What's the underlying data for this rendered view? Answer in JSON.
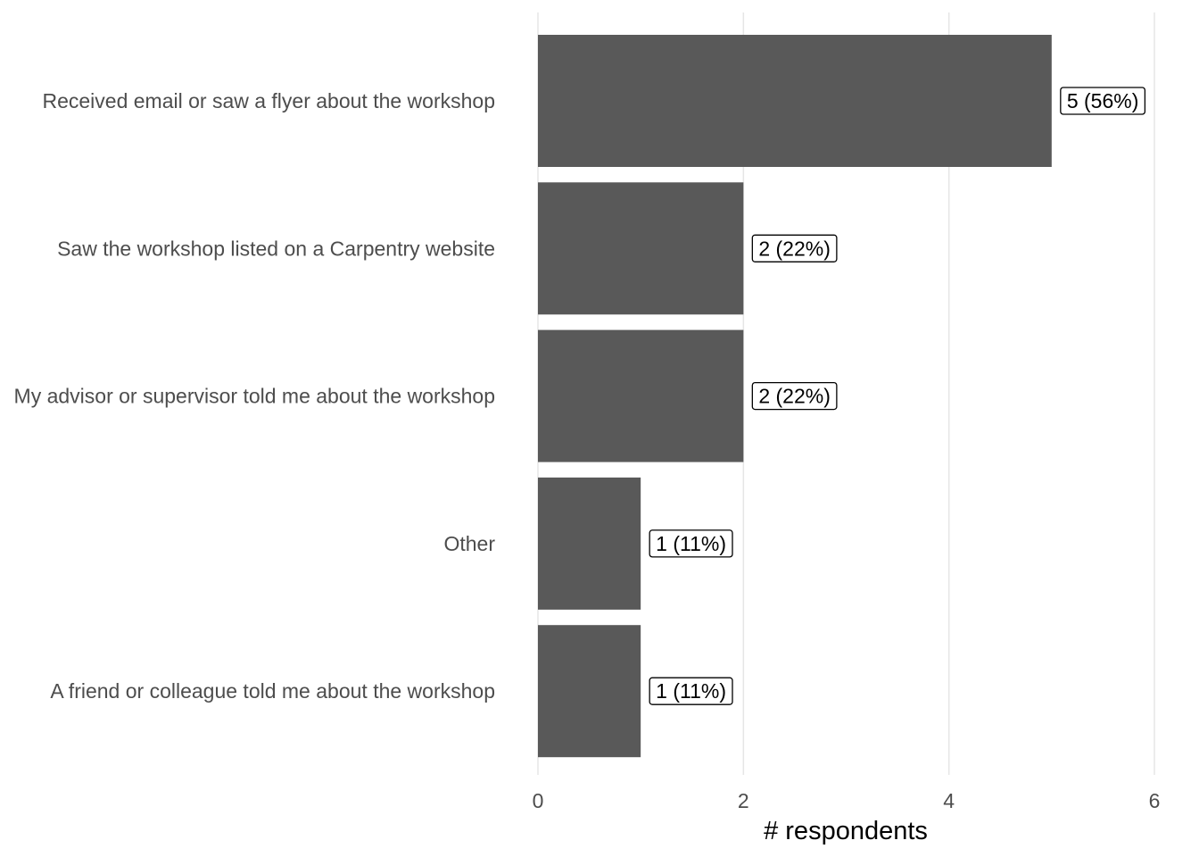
{
  "chart_data": {
    "type": "bar",
    "orientation": "horizontal",
    "categories": [
      "Received email or saw a flyer about the workshop",
      "Saw the workshop listed on a Carpentry website",
      "My advisor or supervisor told me about the workshop",
      "Other",
      "A friend or colleague told me about the workshop"
    ],
    "values": [
      5,
      2,
      2,
      1,
      1
    ],
    "data_labels": [
      "5 (56%)",
      "2 (22%)",
      "2 (22%)",
      "1 (11%)",
      "1 (11%)"
    ],
    "xlabel": "# respondents",
    "ylabel": "",
    "xlim": [
      0,
      6
    ],
    "xticks": [
      0,
      2,
      4,
      6
    ],
    "xtick_labels": [
      "0",
      "2",
      "4",
      "6"
    ],
    "grid": "vertical major gridlines",
    "legend": "none",
    "colors": {
      "bar": "#595959",
      "grid": "#e6e6e6",
      "category_text": "#4d4d4d",
      "tick_text": "#4d4d4d",
      "axis_title": "#000000",
      "label_border": "#000000"
    }
  }
}
